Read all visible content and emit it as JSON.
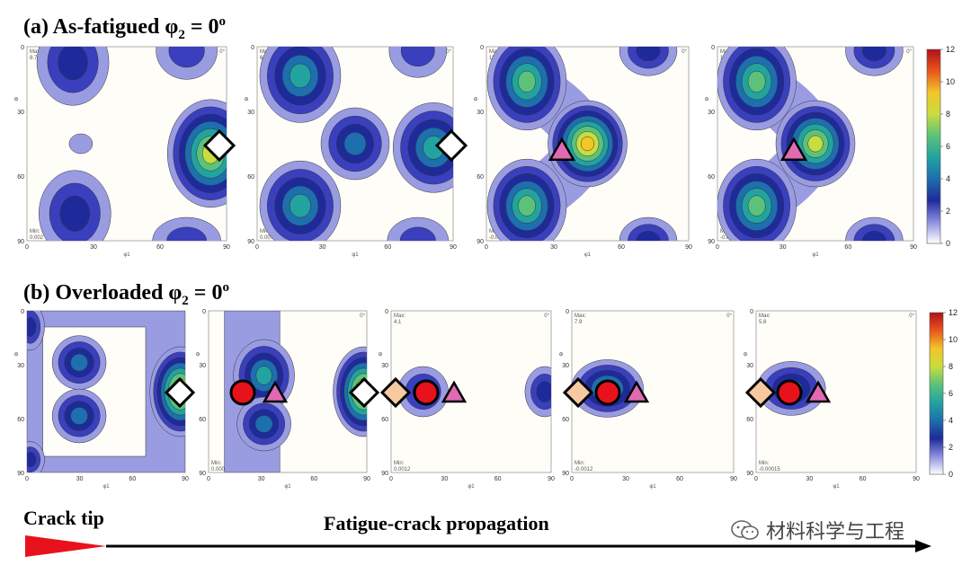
{
  "panel_a": {
    "title_prefix": "(a) As-fatigued φ",
    "title_sub": "2",
    "title_eq": " = 0",
    "title_sup": "o",
    "maps": [
      {
        "max_label": "Max:",
        "max_val": "8.7",
        "min_label": "Min:",
        "min_val": "0.002"
      },
      {
        "max_label": "Max:",
        "max_val": "6.0",
        "min_label": "Min:",
        "min_val": "0.0078"
      },
      {
        "max_label": "Max:",
        "max_val": "11",
        "min_label": "Min:",
        "min_val": "-0.0031"
      },
      {
        "max_label": "Max:",
        "max_val": "11",
        "min_label": "Min:",
        "min_val": "-0.0006"
      }
    ],
    "colorbar_ticks": [
      "0",
      "2",
      "4",
      "6",
      "8",
      "10",
      "12"
    ]
  },
  "panel_b": {
    "title_prefix": "(b) Overloaded φ",
    "title_sub": "2",
    "title_eq": " = 0",
    "title_sup": "o",
    "maps": [
      {
        "max_label": "",
        "max_val": "",
        "min_label": "",
        "min_val": ""
      },
      {
        "max_label": "",
        "max_val": "",
        "min_label": "Min:",
        "min_val": "0.0003"
      },
      {
        "max_label": "Max:",
        "max_val": "4.1",
        "min_label": "Min:",
        "min_val": "0.0012"
      },
      {
        "max_label": "Max:",
        "max_val": "7.9",
        "min_label": "Min:",
        "min_val": "-0.0012"
      },
      {
        "max_label": "Max:",
        "max_val": "5.8",
        "min_label": "Min:",
        "min_val": "-0.00015"
      }
    ],
    "colorbar_ticks": [
      "0",
      "2",
      "4",
      "6",
      "8",
      "10",
      "12"
    ]
  },
  "axis": {
    "x_ticks": [
      "0",
      "30",
      "60",
      "90"
    ],
    "y_ticks": [
      "0",
      "30",
      "60",
      "90"
    ],
    "x_label": "φ1",
    "y_label": "Φ",
    "corner_label": "0°"
  },
  "footer": {
    "crack_tip": "Crack tip",
    "propagation": "Fatigue-crack propagation",
    "watermark": "材料科学与工程"
  },
  "colors": {
    "level1": "#9a9ce2",
    "level2": "#3a3fbd",
    "level3": "#1f2a9a",
    "level4": "#1d6fae",
    "level5": "#22a3a0",
    "level6": "#5cc27a",
    "level7": "#c8dd3e",
    "level8": "#f2c52a",
    "marker_diamond_white": "#ffffff",
    "marker_diamond_peach": "#f6c9a0",
    "marker_circle": "#e8121c",
    "marker_triangle": "#e06ab2",
    "crack_tip": "#e8121c"
  }
}
